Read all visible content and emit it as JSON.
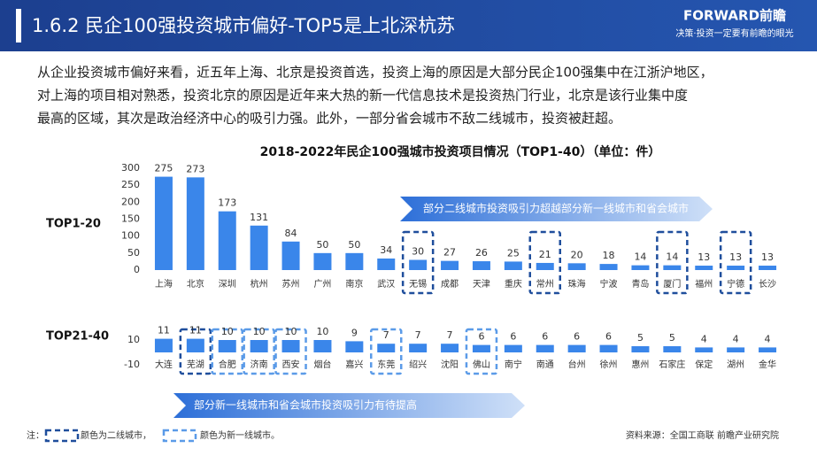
{
  "header": {
    "title": "1.6.2 民企100强投资城市偏好-TOP5是上北深杭苏",
    "logo": "FORWARD前瞻",
    "slogan": "决策·投资一定要有前瞻的眼光"
  },
  "body_lines": [
    "从企业投资城市偏好来看，近五年上海、北京是投资首选，投资上海的原因是大部分民企100强集中在江浙沪地区，",
    "对上海的项目相对熟悉，投资北京的原因是近年来大热的新一代信息技术是投资热门行业，北京是该行业集中度",
    "最高的区域，其次是政治经济中心的吸引力强。此外，一部分省会城市不敌二线城市，投资被赶超。"
  ],
  "chart_data": [
    {
      "type": "bar",
      "title": "2018-2022年民企100强城市投资项目情况（TOP1-40）（单位：件）",
      "label": "TOP1-20",
      "categories": [
        "上海",
        "北京",
        "深圳",
        "杭州",
        "苏州",
        "广州",
        "南京",
        "武汉",
        "无锡",
        "成都",
        "天津",
        "重庆",
        "常州",
        "珠海",
        "宁波",
        "青岛",
        "厦门",
        "福州",
        "宁德",
        "长沙"
      ],
      "values": [
        275,
        273,
        173,
        131,
        84,
        50,
        50,
        34,
        30,
        27,
        26,
        25,
        21,
        20,
        18,
        14,
        14,
        13,
        13,
        13
      ],
      "box_colors": [
        null,
        null,
        null,
        null,
        null,
        null,
        null,
        null,
        "#1f4e9c",
        null,
        null,
        null,
        "#1f4e9c",
        null,
        null,
        null,
        "#1f4e9c",
        null,
        "#1f4e9c",
        null
      ],
      "color": "#3a86ea",
      "ylim": [
        0,
        300
      ],
      "yticks": [
        0,
        50,
        100,
        150,
        200,
        250,
        300
      ],
      "annotation": "部分二线城市投资吸引力超越部分新一线城市和省会城市"
    },
    {
      "type": "bar",
      "label": "TOP21-40",
      "categories": [
        "大连",
        "芜湖",
        "合肥",
        "济南",
        "西安",
        "烟台",
        "嘉兴",
        "东莞",
        "绍兴",
        "沈阳",
        "佛山",
        "南宁",
        "南通",
        "台州",
        "徐州",
        "惠州",
        "石家庄",
        "保定",
        "湖州",
        "金华"
      ],
      "values": [
        11,
        11,
        10,
        10,
        10,
        10,
        9,
        7,
        7,
        7,
        6,
        6,
        6,
        6,
        6,
        5,
        5,
        4,
        4,
        4
      ],
      "box_colors": [
        null,
        "#1f4e9c",
        "#5b9be8",
        "#5b9be8",
        "#5b9be8",
        null,
        null,
        "#5b9be8",
        null,
        null,
        "#5b9be8",
        null,
        null,
        null,
        null,
        null,
        null,
        null,
        null,
        null
      ],
      "color": "#3a86ea",
      "ylim": [
        -10,
        20
      ],
      "yticks": [
        -10,
        10
      ],
      "annotation": "部分新一线城市和省会城市投资吸引力有待提高"
    }
  ],
  "legend": {
    "prefix": "注：",
    "second_tier": "颜色为二线城市，",
    "new_first_tier": "颜色为新一线城市。",
    "second_tier_color": "#1f4e9c",
    "new_first_tier_color": "#5b9be8"
  },
  "source": "资料来源：全国工商联 前瞻产业研究院"
}
